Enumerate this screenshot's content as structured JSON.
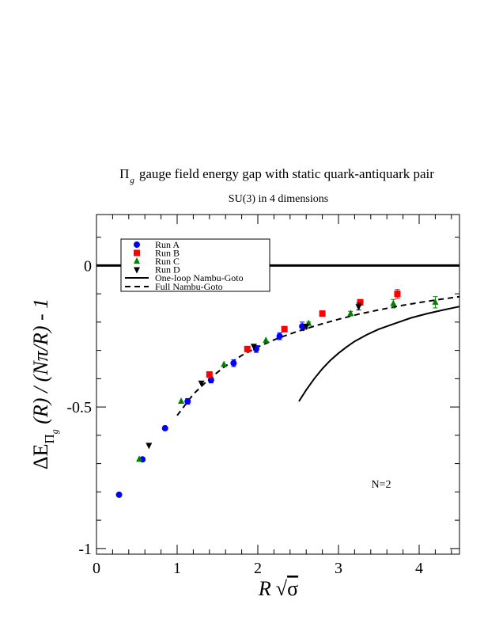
{
  "chart_data": {
    "type": "scatter",
    "title_main": "gauge field energy gap with static quark-antiquark pair",
    "title_symbol": "Π",
    "title_symbol_sub": "g",
    "subtitle": "SU(3) in 4 dimensions",
    "xlabel": {
      "var": "R",
      "radicand": "σ"
    },
    "ylabel": {
      "pre": "ΔE",
      "sub": "Π",
      "subsub": "g",
      "post": " (R) / (Nπ/R) - 1"
    },
    "annotation": "N=2",
    "xlim": [
      0,
      4.5
    ],
    "ylim": [
      -1.02,
      0.18
    ],
    "x_ticks": [
      0,
      1,
      2,
      3,
      4
    ],
    "x_tick_labels": [
      "0",
      "1",
      "2",
      "3",
      "4"
    ],
    "y_ticks": [
      0,
      -0.5,
      -1
    ],
    "y_tick_labels": [
      "0",
      "-0.5",
      "-1"
    ],
    "zero_line": 0,
    "legend": {
      "placement": "top-left"
    },
    "series": [
      {
        "name": "Run A",
        "marker": "circle",
        "color": "#0000ff",
        "points": [
          [
            0.28,
            -0.81,
            0
          ],
          [
            0.57,
            -0.685,
            0
          ],
          [
            0.85,
            -0.575,
            0
          ],
          [
            1.13,
            -0.48,
            0.01
          ],
          [
            1.42,
            -0.405,
            0.01
          ],
          [
            1.7,
            -0.345,
            0.012
          ],
          [
            1.98,
            -0.295,
            0.012
          ],
          [
            2.27,
            -0.25,
            0.012
          ],
          [
            2.55,
            -0.215,
            0.015
          ]
        ]
      },
      {
        "name": "Run B",
        "marker": "square",
        "color": "#ff0000",
        "points": [
          [
            1.4,
            -0.385,
            0.008
          ],
          [
            1.87,
            -0.295,
            0.008
          ],
          [
            2.33,
            -0.225,
            0.01
          ],
          [
            2.8,
            -0.17,
            0.01
          ],
          [
            3.27,
            -0.13,
            0.01
          ],
          [
            3.73,
            -0.1,
            0.015
          ]
        ]
      },
      {
        "name": "Run C",
        "marker": "triangle-up",
        "color": "#008000",
        "points": [
          [
            0.53,
            -0.685,
            0
          ],
          [
            1.05,
            -0.48,
            0
          ],
          [
            1.58,
            -0.35,
            0
          ],
          [
            2.1,
            -0.265,
            0
          ],
          [
            2.63,
            -0.205,
            0.005
          ],
          [
            3.15,
            -0.17,
            0.008
          ],
          [
            3.68,
            -0.135,
            0.015
          ],
          [
            4.2,
            -0.13,
            0.02
          ]
        ]
      },
      {
        "name": "Run D",
        "marker": "triangle-down",
        "color": "#000000",
        "points": [
          [
            0.65,
            -0.635,
            0
          ],
          [
            1.3,
            -0.415,
            0
          ],
          [
            1.95,
            -0.285,
            0
          ],
          [
            2.6,
            -0.215,
            0.008
          ],
          [
            3.25,
            -0.145,
            0.012
          ]
        ]
      }
    ],
    "curves": [
      {
        "name": "One-loop Nambu-Goto",
        "style": "solid",
        "color": "#000000",
        "points": [
          [
            2.51,
            -0.48
          ],
          [
            2.6,
            -0.44
          ],
          [
            2.7,
            -0.4
          ],
          [
            2.8,
            -0.365
          ],
          [
            2.9,
            -0.335
          ],
          [
            3.0,
            -0.31
          ],
          [
            3.1,
            -0.288
          ],
          [
            3.2,
            -0.268
          ],
          [
            3.35,
            -0.245
          ],
          [
            3.5,
            -0.225
          ],
          [
            3.7,
            -0.205
          ],
          [
            3.9,
            -0.185
          ],
          [
            4.1,
            -0.17
          ],
          [
            4.3,
            -0.157
          ],
          [
            4.5,
            -0.145
          ]
        ]
      },
      {
        "name": "Full Nambu-Goto",
        "style": "dashed",
        "color": "#000000",
        "points": [
          [
            1.0,
            -0.53
          ],
          [
            1.2,
            -0.455
          ],
          [
            1.4,
            -0.4
          ],
          [
            1.6,
            -0.355
          ],
          [
            1.8,
            -0.318
          ],
          [
            2.0,
            -0.288
          ],
          [
            2.25,
            -0.257
          ],
          [
            2.5,
            -0.232
          ],
          [
            2.75,
            -0.21
          ],
          [
            3.0,
            -0.19
          ],
          [
            3.25,
            -0.172
          ],
          [
            3.5,
            -0.157
          ],
          [
            3.75,
            -0.143
          ],
          [
            4.0,
            -0.131
          ],
          [
            4.25,
            -0.12
          ],
          [
            4.5,
            -0.11
          ]
        ]
      }
    ]
  }
}
